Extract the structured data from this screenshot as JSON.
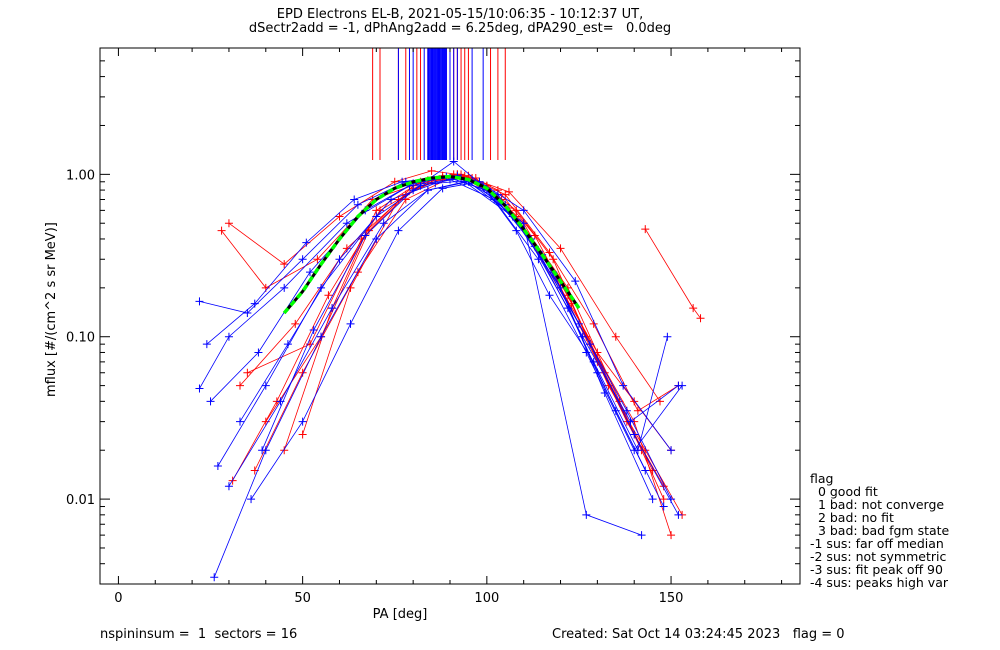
{
  "title_line1": "EPD Electrons EL-B, 2021-05-15/10:06:35 - 10:12:37 UT,",
  "title_line2": "dSectr2add = -1, dPhAng2add = 6.25deg, dPA290_est=   0.0deg",
  "footer": {
    "left": "nspininsum =  1  sectors = 16",
    "right": "Created: Sat Oct 14 03:24:45 2023   flag = 0"
  },
  "legend": {
    "title": "flag",
    "items": [
      "  0 good fit",
      "  1 bad: not converge",
      "  2 bad: no fit",
      "  3 bad: bad fgm state",
      "-1 sus: far off median",
      "-2 sus: not symmetric",
      "-3 sus: fit peak off 90",
      "-4 sus: peaks high var"
    ]
  },
  "colors": {
    "red": "#ff0000",
    "blue": "#0000ff",
    "green": "#00ff00",
    "black": "#000000"
  },
  "chart_data": {
    "type": "line",
    "title": "EPD Electrons EL-B, 2021-05-15/10:06:35 - 10:12:37 UT,",
    "xlabel": "PA [deg]",
    "ylabel": "mflux [#/(cm^2 s sr MeV)]",
    "xlim": [
      -5,
      185
    ],
    "ylim": [
      0.003,
      6.0
    ],
    "yscale": "log",
    "xticks": [
      0,
      50,
      100,
      150
    ],
    "xtick_labels": [
      "0",
      "50",
      "100",
      "150"
    ],
    "yticks": [
      0.01,
      0.1,
      1.0
    ],
    "ytick_labels": [
      "0.01",
      "0.10",
      "1.00"
    ],
    "grid": false,
    "legend_position": "right-bottom",
    "fit_curve": {
      "x": [
        45,
        50,
        55,
        60,
        65,
        70,
        75,
        80,
        85,
        90,
        95,
        100,
        105,
        110,
        115,
        120,
        125
      ],
      "y": [
        0.14,
        0.19,
        0.28,
        0.4,
        0.55,
        0.7,
        0.82,
        0.9,
        0.95,
        0.97,
        0.93,
        0.82,
        0.64,
        0.46,
        0.32,
        0.22,
        0.15
      ]
    },
    "vertical_lines": {
      "red": [
        69,
        71,
        76,
        78,
        81,
        82,
        84,
        87,
        89,
        91,
        92,
        93,
        94,
        95,
        101,
        103,
        105
      ],
      "blue": [
        76,
        79,
        80,
        83,
        84,
        85,
        86,
        87,
        88,
        89,
        90,
        91,
        92,
        96,
        99
      ]
    },
    "series": [
      {
        "color": "red",
        "x": [
          30,
          45,
          60,
          75,
          85,
          92,
          100,
          110,
          120,
          130,
          140,
          150
        ],
        "y": [
          0.5,
          0.28,
          0.55,
          0.9,
          1.05,
          1.0,
          0.85,
          0.5,
          0.2,
          0.08,
          0.04,
          0.02
        ]
      },
      {
        "color": "red",
        "x": [
          33,
          48,
          62,
          78,
          88,
          95,
          103,
          113,
          123,
          133,
          143,
          153
        ],
        "y": [
          0.05,
          0.12,
          0.35,
          0.75,
          0.95,
          0.98,
          0.8,
          0.42,
          0.16,
          0.05,
          0.02,
          0.008
        ]
      },
      {
        "color": "red",
        "x": [
          37,
          50,
          65,
          78,
          90,
          98,
          108,
          118,
          128,
          138,
          148
        ],
        "y": [
          0.015,
          0.06,
          0.25,
          0.7,
          0.95,
          0.9,
          0.6,
          0.3,
          0.09,
          0.03,
          0.012
        ]
      },
      {
        "color": "red",
        "x": [
          40,
          55,
          68,
          80,
          91,
          100,
          112,
          122,
          132,
          145
        ],
        "y": [
          0.03,
          0.1,
          0.45,
          0.85,
          1.0,
          0.85,
          0.4,
          0.18,
          0.06,
          0.015
        ]
      },
      {
        "color": "red",
        "x": [
          45,
          58,
          70,
          82,
          92,
          104,
          115,
          127,
          140,
          150
        ],
        "y": [
          0.02,
          0.15,
          0.6,
          0.9,
          1.0,
          0.7,
          0.3,
          0.1,
          0.03,
          0.006
        ]
      },
      {
        "color": "red",
        "x": [
          31,
          43,
          57,
          71,
          85,
          96,
          108,
          122,
          136,
          148
        ],
        "y": [
          0.013,
          0.04,
          0.18,
          0.6,
          0.92,
          0.95,
          0.55,
          0.2,
          0.04,
          0.01
        ]
      },
      {
        "color": "red",
        "x": [
          50,
          63,
          76,
          88,
          97,
          106,
          118,
          130,
          142
        ],
        "y": [
          0.025,
          0.2,
          0.7,
          0.98,
          0.95,
          0.62,
          0.25,
          0.07,
          0.02
        ]
      },
      {
        "color": "red",
        "x": [
          35,
          52,
          66,
          80,
          93,
          105,
          117,
          129,
          141,
          152
        ],
        "y": [
          0.06,
          0.09,
          0.4,
          0.82,
          1.0,
          0.75,
          0.33,
          0.12,
          0.035,
          0.05
        ]
      },
      {
        "color": "red",
        "x": [
          143,
          156,
          158
        ],
        "y": [
          0.46,
          0.15,
          0.13
        ]
      },
      {
        "color": "red",
        "x": [
          28,
          40,
          54,
          69,
          84,
          94,
          106,
          120,
          135,
          147
        ],
        "y": [
          0.45,
          0.2,
          0.3,
          0.7,
          0.92,
          0.98,
          0.78,
          0.35,
          0.1,
          0.04
        ]
      },
      {
        "color": "blue",
        "x": [
          22,
          35,
          50,
          65,
          78,
          90,
          100,
          112,
          125,
          138,
          150
        ],
        "y": [
          0.165,
          0.14,
          0.3,
          0.65,
          0.9,
          0.95,
          0.8,
          0.4,
          0.12,
          0.035,
          0.01
        ]
      },
      {
        "color": "blue",
        "x": [
          25,
          38,
          52,
          67,
          80,
          92,
          103,
          115,
          128,
          140,
          152
        ],
        "y": [
          0.04,
          0.08,
          0.25,
          0.6,
          0.88,
          0.98,
          0.75,
          0.32,
          0.09,
          0.025,
          0.008
        ]
      },
      {
        "color": "blue",
        "x": [
          27,
          40,
          55,
          70,
          82,
          93,
          105,
          118,
          130,
          143
        ],
        "y": [
          0.016,
          0.05,
          0.2,
          0.55,
          0.85,
          0.95,
          0.65,
          0.25,
          0.06,
          0.015
        ]
      },
      {
        "color": "blue",
        "x": [
          30,
          44,
          58,
          72,
          84,
          94,
          107,
          120,
          132,
          145
        ],
        "y": [
          0.012,
          0.04,
          0.15,
          0.5,
          0.8,
          0.9,
          0.55,
          0.2,
          0.045,
          0.01
        ]
      },
      {
        "color": "blue",
        "x": [
          33,
          46,
          60,
          74,
          86,
          96,
          109,
          122,
          135,
          148
        ],
        "y": [
          0.03,
          0.09,
          0.3,
          0.7,
          0.88,
          0.92,
          0.5,
          0.15,
          0.035,
          0.009
        ]
      },
      {
        "color": "blue",
        "x": [
          36,
          50,
          63,
          76,
          88,
          98,
          110,
          124,
          137,
          150
        ],
        "y": [
          0.01,
          0.03,
          0.12,
          0.45,
          0.82,
          0.9,
          0.6,
          0.22,
          0.05,
          0.02
        ]
      },
      {
        "color": "blue",
        "x": [
          24,
          37,
          51,
          64,
          77,
          89,
          101,
          113,
          126,
          139,
          152
        ],
        "y": [
          0.09,
          0.16,
          0.38,
          0.7,
          0.9,
          0.97,
          0.78,
          0.36,
          0.1,
          0.03,
          0.05
        ]
      },
      {
        "color": "blue",
        "x": [
          26,
          40,
          55,
          70,
          84,
          95,
          110,
          127,
          142
        ],
        "y": [
          0.0033,
          0.02,
          0.1,
          0.4,
          0.8,
          0.9,
          0.5,
          0.008,
          0.006
        ]
      },
      {
        "color": "blue",
        "x": [
          39,
          53,
          67,
          80,
          91,
          99,
          108,
          117,
          129,
          141,
          149
        ],
        "y": [
          0.02,
          0.11,
          0.42,
          0.8,
          1.2,
          0.85,
          0.45,
          0.18,
          0.07,
          0.02,
          0.1
        ]
      },
      {
        "color": "blue",
        "x": [
          22,
          30,
          45,
          62,
          79,
          90,
          102,
          114,
          127,
          140,
          153
        ],
        "y": [
          0.048,
          0.1,
          0.2,
          0.5,
          0.85,
          0.93,
          0.7,
          0.3,
          0.08,
          0.02,
          0.05
        ]
      }
    ]
  }
}
